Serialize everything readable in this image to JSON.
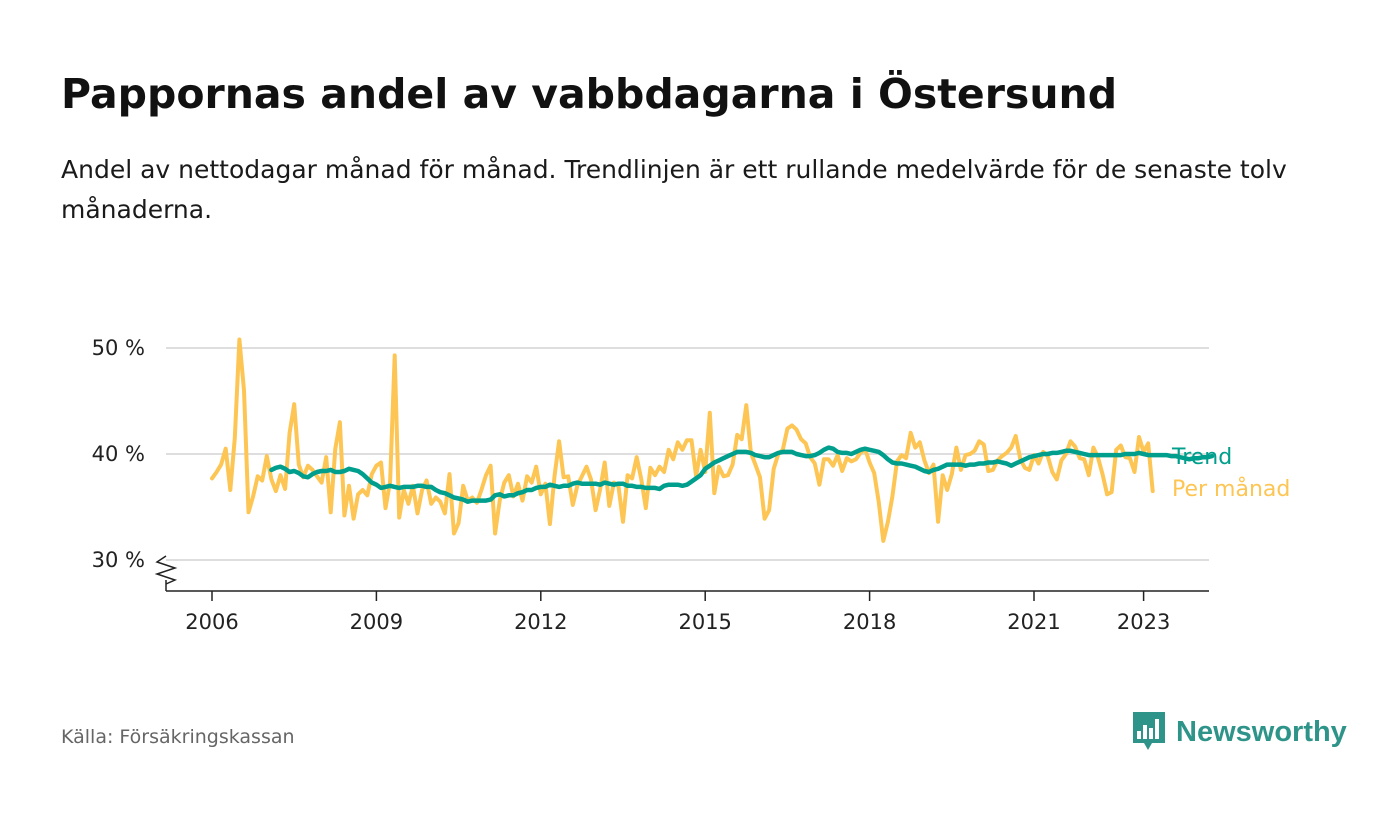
{
  "header": {
    "title": "Pappornas andel av vabbdagarna i Östersund",
    "subtitle": "Andel av nettodagar månad för månad. Trendlinjen är ett rullande medelvärde för de senaste tolv månaderna."
  },
  "footer": {
    "source": "Källa: Försäkringskassan",
    "brand": "Newsworthy",
    "brand_color": "#2e948a"
  },
  "chart_data": {
    "type": "line",
    "title": "Pappornas andel av vabbdagarna i Östersund",
    "xlabel": "",
    "ylabel": "",
    "ylim": [
      27,
      50
    ],
    "xlim": [
      2005.5,
      2024.2
    ],
    "y_ticks": [
      30,
      40,
      50
    ],
    "y_tick_labels": [
      "30 %",
      "40 %",
      "50 %"
    ],
    "x_ticks": [
      2006,
      2009,
      2012,
      2015,
      2018,
      2021,
      2023
    ],
    "x_tick_labels": [
      "2006",
      "2009",
      "2012",
      "2015",
      "2018",
      "2021",
      "2023"
    ],
    "grid": true,
    "broken_axis": true,
    "colors": {
      "per_month": "#fdc553",
      "trend": "#009e8c",
      "grid": "#d4d4d4",
      "axis": "#222222",
      "text": "#222222"
    },
    "x_start": 2006.0,
    "x_step": 0.0833333,
    "series": [
      {
        "name": "Per månad",
        "values": [
          37.7,
          38.3,
          39.0,
          40.5,
          36.6,
          41.5,
          50.8,
          46.0,
          34.5,
          36.0,
          37.9,
          37.5,
          39.8,
          37.6,
          36.5,
          38.0,
          36.7,
          42.0,
          44.7,
          39.0,
          37.8,
          38.9,
          38.5,
          37.9,
          37.3,
          39.7,
          34.5,
          40.5,
          43.0,
          34.2,
          37.0,
          33.9,
          36.2,
          36.6,
          36.1,
          38.1,
          38.9,
          39.2,
          34.9,
          37.4,
          49.3,
          34.0,
          36.6,
          35.3,
          37.0,
          34.4,
          36.6,
          37.5,
          35.3,
          35.9,
          35.5,
          34.4,
          38.1,
          32.5,
          33.5,
          37.0,
          35.6,
          35.9,
          35.4,
          36.6,
          38.0,
          38.9,
          32.5,
          35.6,
          37.3,
          38.0,
          36.0,
          37.2,
          35.6,
          37.9,
          37.3,
          38.8,
          36.2,
          37.2,
          33.4,
          37.9,
          41.2,
          37.8,
          37.9,
          35.2,
          37.0,
          37.9,
          38.8,
          37.6,
          34.7,
          36.7,
          39.2,
          35.1,
          37.3,
          37.0,
          33.6,
          38.0,
          37.7,
          39.7,
          37.6,
          34.9,
          38.7,
          38.0,
          38.8,
          38.3,
          40.4,
          39.5,
          41.1,
          40.4,
          41.3,
          41.3,
          37.9,
          40.4,
          38.3,
          43.9,
          36.3,
          38.8,
          37.9,
          38.0,
          39.0,
          41.8,
          41.4,
          44.6,
          40.1,
          39.0,
          37.8,
          33.9,
          34.7,
          38.6,
          40.0,
          40.4,
          42.4,
          42.7,
          42.3,
          41.4,
          41.0,
          39.7,
          39.1,
          37.1,
          39.5,
          39.5,
          38.9,
          39.9,
          38.4,
          39.6,
          39.3,
          39.5,
          40.1,
          40.5,
          39.2,
          38.2,
          35.5,
          31.8,
          33.6,
          36.0,
          39.3,
          39.9,
          39.6,
          42.0,
          40.6,
          41.1,
          39.4,
          38.2,
          39.0,
          33.6,
          38.0,
          36.6,
          38.1,
          40.6,
          38.5,
          39.9,
          40.0,
          40.3,
          41.2,
          40.9,
          38.4,
          38.5,
          39.4,
          39.8,
          40.1,
          40.6,
          41.7,
          39.5,
          38.7,
          38.5,
          39.9,
          39.1,
          40.2,
          39.8,
          38.3,
          37.6,
          39.4,
          40.0,
          41.2,
          40.7,
          39.6,
          39.5,
          38.0,
          40.6,
          39.7,
          38.1,
          36.2,
          36.4,
          40.4,
          40.8,
          39.7,
          39.6,
          38.3,
          41.6,
          40.2,
          41.0,
          36.5
        ]
      },
      {
        "name": "Trend",
        "values": [
          38.5,
          38.7,
          38.8,
          38.6,
          38.3,
          38.4,
          38.2,
          37.9,
          37.8,
          38.1,
          38.3,
          38.4,
          38.4,
          38.5,
          38.3,
          38.3,
          38.4,
          38.6,
          38.5,
          38.4,
          38.1,
          37.7,
          37.3,
          37.1,
          36.8,
          36.9,
          37.0,
          36.9,
          36.8,
          36.9,
          36.9,
          36.9,
          37.0,
          37.0,
          36.9,
          36.9,
          36.6,
          36.4,
          36.3,
          36.1,
          35.9,
          35.8,
          35.7,
          35.5,
          35.6,
          35.6,
          35.6,
          35.6,
          35.7,
          36.1,
          36.2,
          36.0,
          36.1,
          36.1,
          36.3,
          36.4,
          36.6,
          36.6,
          36.8,
          36.9,
          36.9,
          37.1,
          37.0,
          36.9,
          37.0,
          37.0,
          37.2,
          37.3,
          37.2,
          37.2,
          37.2,
          37.2,
          37.1,
          37.3,
          37.2,
          37.1,
          37.2,
          37.2,
          37.0,
          37.0,
          36.9,
          36.9,
          36.8,
          36.8,
          36.8,
          36.7,
          37.0,
          37.1,
          37.1,
          37.1,
          37.0,
          37.1,
          37.4,
          37.7,
          38.0,
          38.6,
          38.9,
          39.2,
          39.4,
          39.6,
          39.8,
          40.0,
          40.2,
          40.2,
          40.2,
          40.1,
          39.9,
          39.8,
          39.7,
          39.7,
          39.9,
          40.1,
          40.2,
          40.2,
          40.2,
          40.0,
          39.9,
          39.8,
          39.8,
          39.9,
          40.1,
          40.4,
          40.6,
          40.5,
          40.2,
          40.1,
          40.1,
          40.0,
          40.2,
          40.4,
          40.5,
          40.4,
          40.3,
          40.2,
          39.9,
          39.5,
          39.2,
          39.1,
          39.1,
          39.0,
          38.9,
          38.8,
          38.6,
          38.4,
          38.3,
          38.5,
          38.6,
          38.8,
          39.0,
          39.0,
          39.0,
          39.0,
          38.9,
          39.0,
          39.0,
          39.1,
          39.1,
          39.2,
          39.2,
          39.3,
          39.2,
          39.1,
          38.9,
          39.1,
          39.3,
          39.5,
          39.7,
          39.8,
          39.9,
          40.0,
          40.0,
          40.1,
          40.1,
          40.2,
          40.3,
          40.3,
          40.2,
          40.1,
          40.0,
          39.9,
          39.9,
          39.9,
          39.9,
          39.9,
          39.9,
          39.9,
          39.9,
          40.0,
          40.0,
          40.0,
          40.1,
          40.0,
          39.9,
          39.9,
          39.9,
          39.9,
          39.9,
          39.8,
          39.8,
          39.7,
          39.6,
          39.5,
          39.6,
          39.6,
          39.7,
          39.7,
          39.8
        ]
      }
    ],
    "series_start_index": [
      0,
      13
    ],
    "legend": [
      "Trend",
      "Per månad"
    ]
  }
}
